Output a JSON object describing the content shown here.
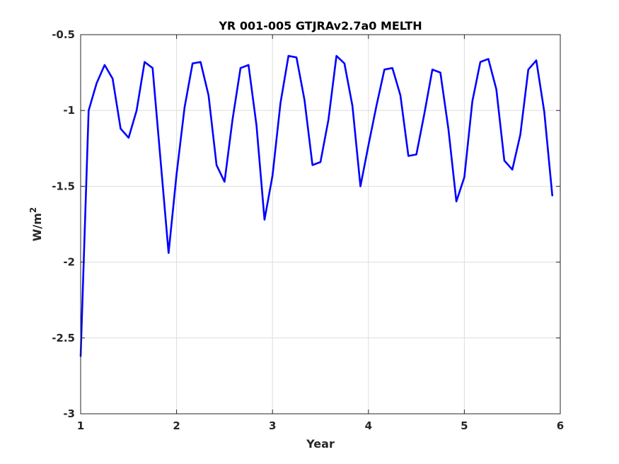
{
  "chart_data": {
    "type": "line",
    "title": "YR 001-005 GTJRAv2.7a0 MELTH",
    "xlabel": "Year",
    "ylabel": "W/m",
    "ylabel_superscript": "2",
    "xlim": [
      1,
      6
    ],
    "ylim": [
      -3,
      -0.5
    ],
    "xticks": [
      1,
      2,
      3,
      4,
      5,
      6
    ],
    "xtick_labels": [
      "1",
      "2",
      "3",
      "4",
      "5",
      "6"
    ],
    "yticks": [
      -3,
      -2.5,
      -2,
      -1.5,
      -1,
      -0.5
    ],
    "ytick_labels": [
      "-3",
      "-2.5",
      "-2",
      "-1.5",
      "-1",
      "-0.5"
    ],
    "grid": true,
    "series": [
      {
        "color": "#0000ff",
        "x": [
          1.0,
          1.083,
          1.167,
          1.25,
          1.333,
          1.417,
          1.5,
          1.583,
          1.667,
          1.75,
          1.833,
          1.917,
          2.0,
          2.083,
          2.167,
          2.25,
          2.333,
          2.417,
          2.5,
          2.583,
          2.667,
          2.75,
          2.833,
          2.917,
          3.0,
          3.083,
          3.167,
          3.25,
          3.333,
          3.417,
          3.5,
          3.583,
          3.667,
          3.75,
          3.833,
          3.917,
          4.0,
          4.083,
          4.167,
          4.25,
          4.333,
          4.417,
          4.5,
          4.583,
          4.667,
          4.75,
          4.833,
          4.917,
          5.0,
          5.083,
          5.167,
          5.25,
          5.333,
          5.417,
          5.5,
          5.583,
          5.667,
          5.75,
          5.833,
          5.917
        ],
        "y": [
          -2.62,
          -1.0,
          -0.82,
          -0.7,
          -0.79,
          -1.12,
          -1.18,
          -1.0,
          -0.68,
          -0.72,
          -1.33,
          -1.94,
          -1.42,
          -0.98,
          -0.69,
          -0.68,
          -0.9,
          -1.36,
          -1.47,
          -1.06,
          -0.72,
          -0.7,
          -1.1,
          -1.72,
          -1.43,
          -0.95,
          -0.64,
          -0.65,
          -0.93,
          -1.36,
          -1.34,
          -1.06,
          -0.64,
          -0.69,
          -0.97,
          -1.5,
          -1.23,
          -0.97,
          -0.73,
          -0.72,
          -0.9,
          -1.3,
          -1.29,
          -1.02,
          -0.73,
          -0.75,
          -1.12,
          -1.6,
          -1.44,
          -0.94,
          -0.68,
          -0.66,
          -0.86,
          -1.33,
          -1.39,
          -1.16,
          -0.73,
          -0.67,
          -1.01,
          -1.56
        ]
      }
    ]
  }
}
